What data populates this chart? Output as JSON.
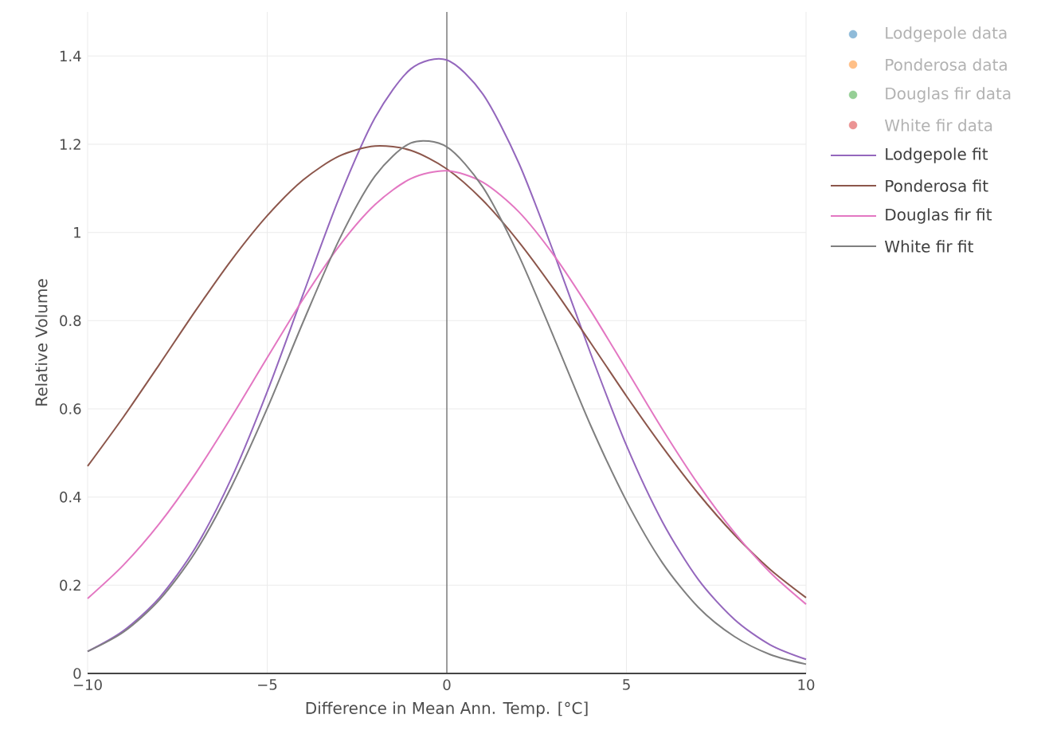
{
  "chart_data": {
    "type": "line",
    "xlabel": "Difference in Mean Ann. Temp. [°C]",
    "ylabel": "Relative Volume",
    "x": [
      -10,
      -9,
      -8,
      -7,
      -6,
      -5,
      -4,
      -3,
      -2,
      -1,
      0,
      1,
      2,
      3,
      4,
      5,
      6,
      7,
      8,
      9,
      10
    ],
    "series": [
      {
        "name": "Lodgepole data",
        "type": "scatter",
        "marker": "circle",
        "color": "#8fbbd9",
        "values": [
          null,
          null,
          null,
          null,
          null,
          null,
          null,
          null,
          null,
          null,
          null,
          null,
          null,
          null,
          null,
          null,
          null,
          null,
          null,
          null,
          null
        ]
      },
      {
        "name": "Ponderosa data",
        "type": "scatter",
        "marker": "circle",
        "color": "#ffbf87",
        "values": [
          null,
          null,
          null,
          null,
          null,
          null,
          null,
          null,
          null,
          null,
          null,
          null,
          null,
          null,
          null,
          null,
          null,
          null,
          null,
          null,
          null
        ]
      },
      {
        "name": "Douglas fir data",
        "type": "scatter",
        "marker": "circle",
        "color": "#96cf96",
        "values": [
          null,
          null,
          null,
          null,
          null,
          null,
          null,
          null,
          null,
          null,
          null,
          null,
          null,
          null,
          null,
          null,
          null,
          null,
          null,
          null,
          null
        ]
      },
      {
        "name": "White fir data",
        "type": "scatter",
        "marker": "circle",
        "color": "#eb9394",
        "values": [
          null,
          null,
          null,
          null,
          null,
          null,
          null,
          null,
          null,
          null,
          null,
          null,
          null,
          null,
          null,
          null,
          null,
          null,
          null,
          null,
          null
        ]
      },
      {
        "name": "Lodgepole fit",
        "color": "#9467bd",
        "values": [
          0.05,
          0.097,
          0.172,
          0.285,
          0.442,
          0.639,
          0.86,
          1.078,
          1.26,
          1.371,
          1.391,
          1.314,
          1.158,
          0.949,
          0.726,
          0.517,
          0.344,
          0.213,
          0.123,
          0.065,
          0.032
        ]
      },
      {
        "name": "Ponderosa fit",
        "color": "#8c564b",
        "values": [
          0.47,
          0.582,
          0.701,
          0.822,
          0.937,
          1.038,
          1.119,
          1.173,
          1.196,
          1.186,
          1.144,
          1.073,
          0.979,
          0.869,
          0.75,
          0.629,
          0.514,
          0.408,
          0.315,
          0.236,
          0.172
        ]
      },
      {
        "name": "Douglas fir fit",
        "color": "#e377c2",
        "values": [
          0.17,
          0.246,
          0.34,
          0.453,
          0.581,
          0.716,
          0.849,
          0.969,
          1.063,
          1.122,
          1.14,
          1.114,
          1.047,
          0.946,
          0.823,
          0.689,
          0.554,
          0.429,
          0.32,
          0.229,
          0.157
        ]
      },
      {
        "name": "White fir fit",
        "color": "#7f7f7f",
        "values": [
          0.05,
          0.094,
          0.167,
          0.275,
          0.423,
          0.601,
          0.797,
          0.983,
          1.128,
          1.203,
          1.194,
          1.103,
          0.948,
          0.758,
          0.563,
          0.391,
          0.251,
          0.15,
          0.084,
          0.043,
          0.021
        ]
      }
    ],
    "xlim": [
      -10,
      10
    ],
    "ylim": [
      0,
      1.5
    ],
    "xticks": [
      {
        "value": -10,
        "label": "−10"
      },
      {
        "value": -5,
        "label": "−5"
      },
      0,
      5,
      10
    ],
    "yticks": [
      0,
      0.2,
      0.4,
      0.6,
      0.8,
      1,
      1.2,
      1.4
    ],
    "ref_lines": [
      {
        "axis": "x",
        "value": 0,
        "color": "#444444"
      }
    ],
    "grid": true,
    "legend": "top right"
  }
}
